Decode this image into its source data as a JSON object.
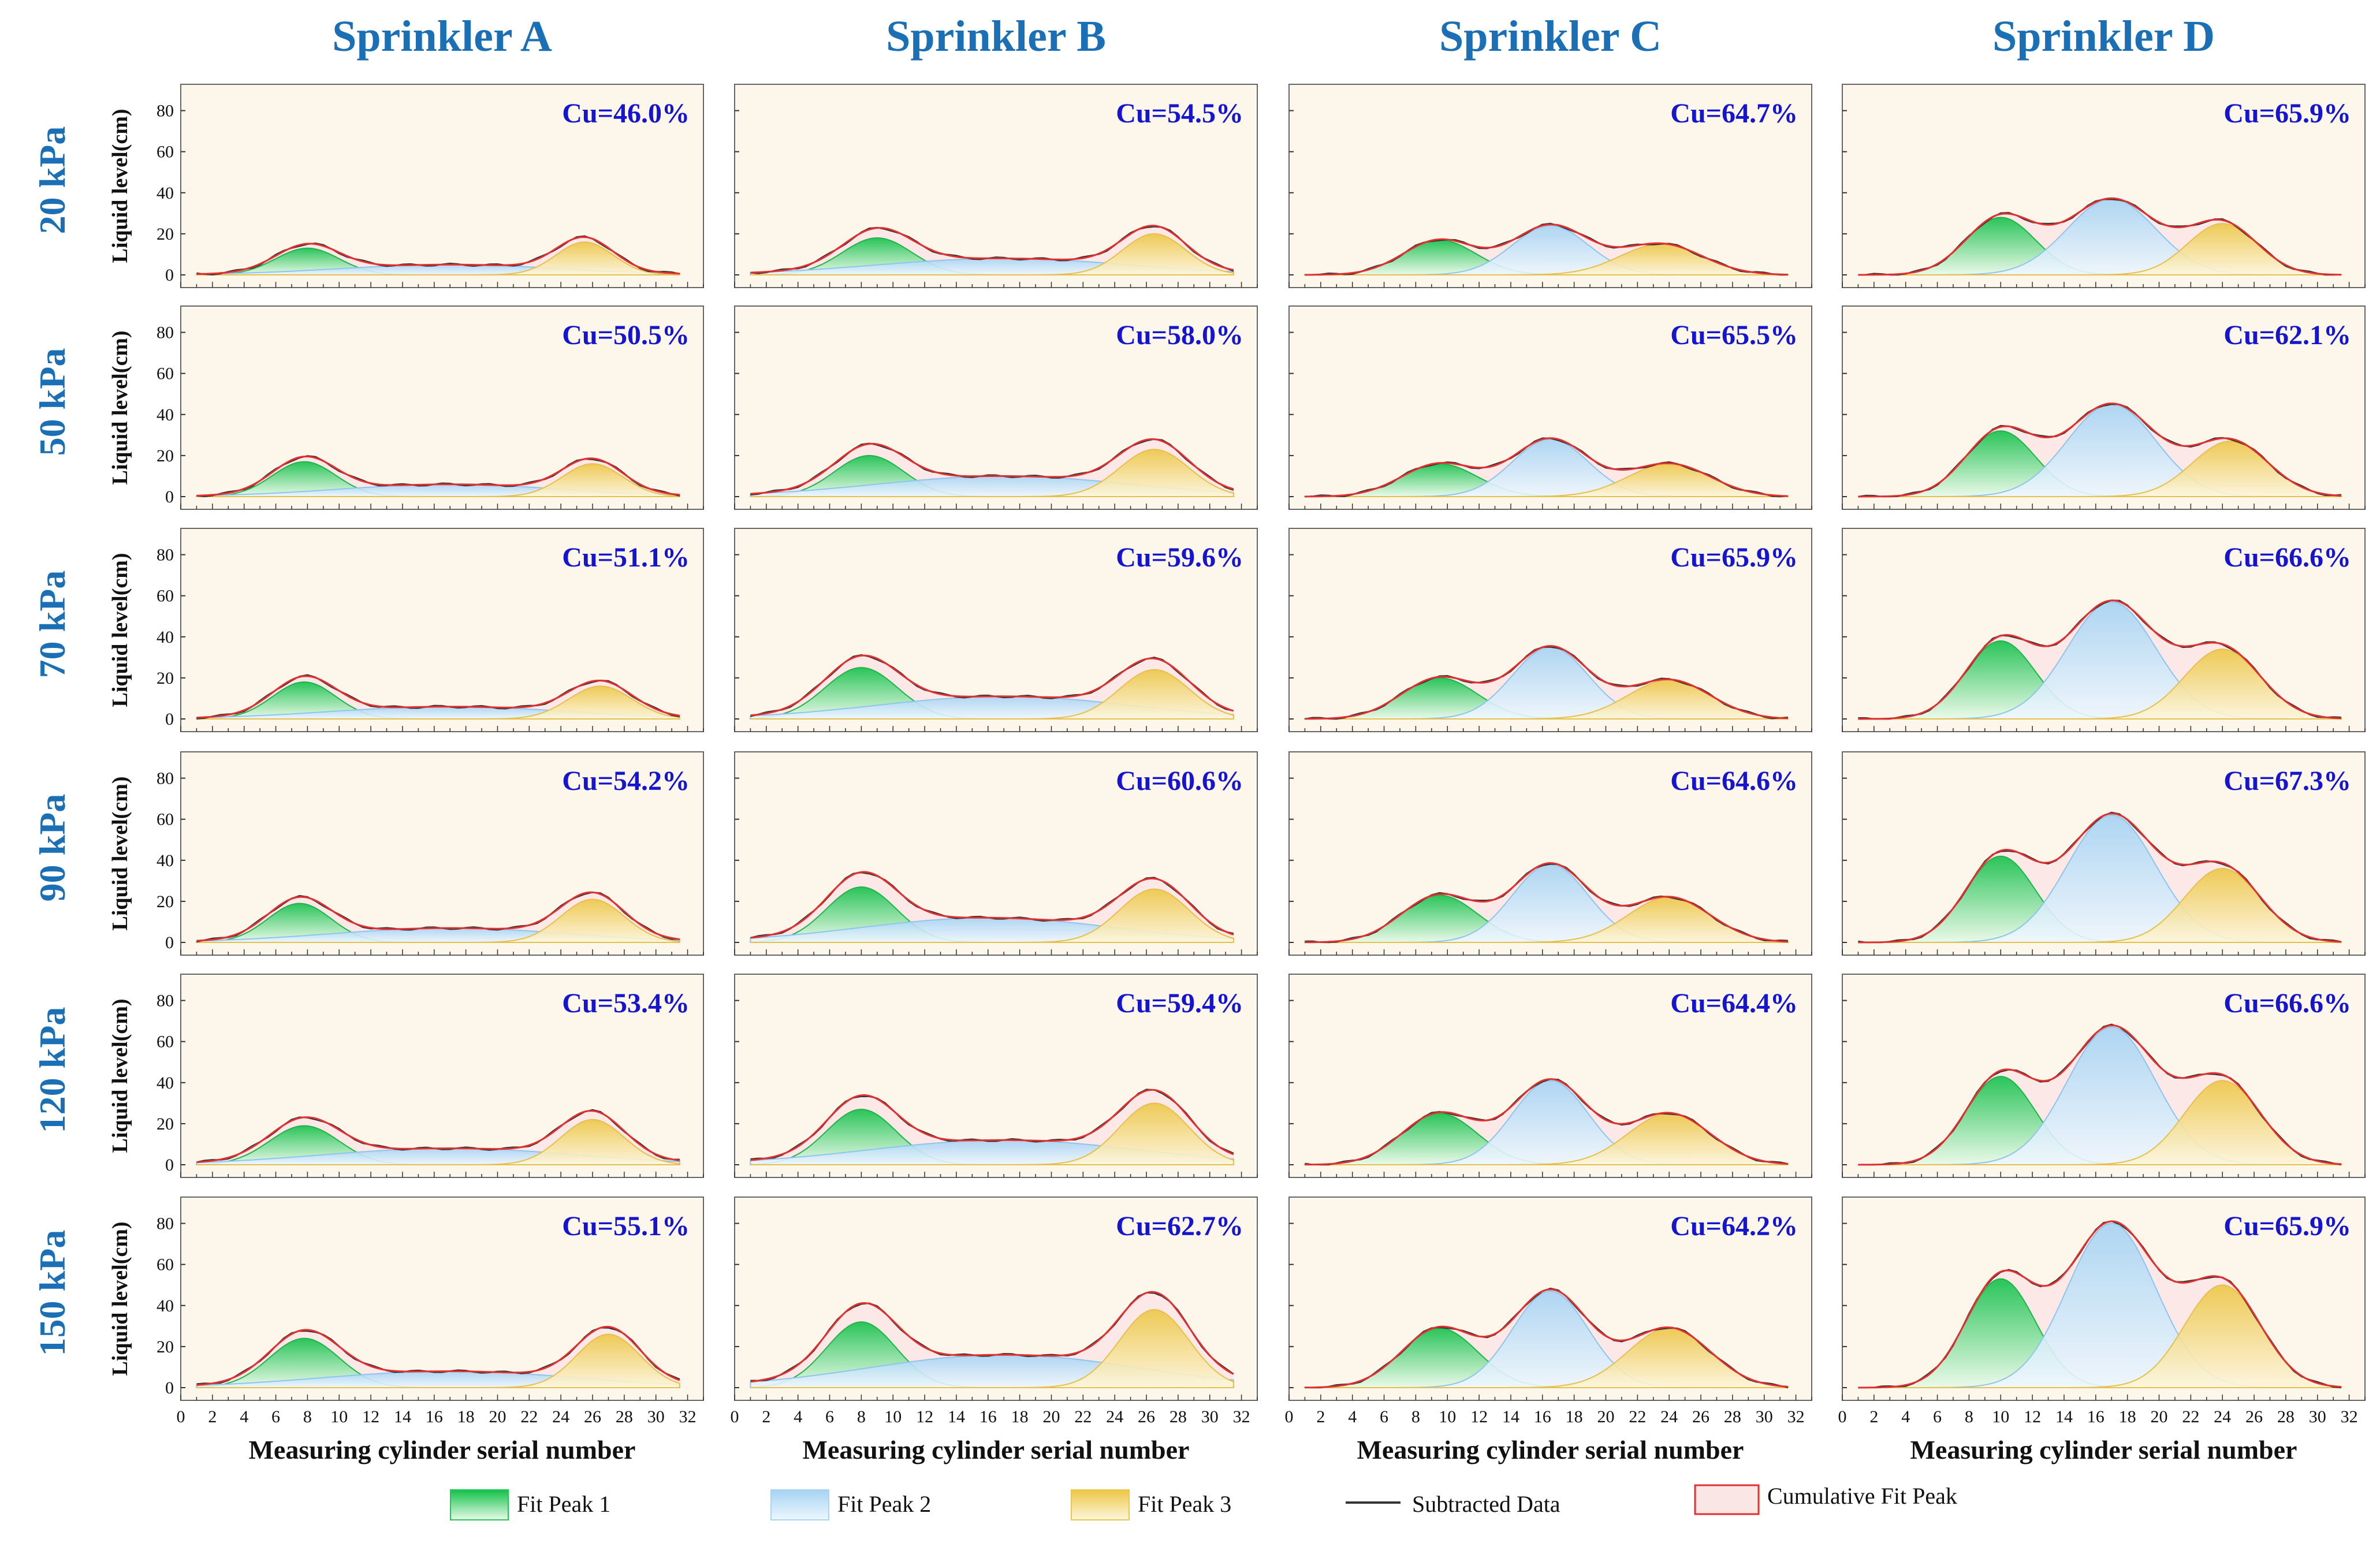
{
  "chart_data": {
    "type": "area",
    "column_titles": [
      "Sprinkler A",
      "Sprinkler B",
      "Sprinkler C",
      "Sprinkler D"
    ],
    "row_labels": [
      "20 kPa",
      "50 kPa",
      "70 kPa",
      "90 kPa",
      "120 kPa",
      "150 kPa"
    ],
    "ylabel": "Liquid level(cm)",
    "xlabel": "Measuring cylinder serial number",
    "xlim": [
      0,
      33
    ],
    "ylim": [
      0,
      90
    ],
    "x_ticks": [
      0,
      2,
      4,
      6,
      8,
      10,
      12,
      14,
      16,
      18,
      20,
      22,
      24,
      26,
      28,
      30,
      32
    ],
    "y_ticks": [
      0,
      20,
      40,
      60,
      80
    ],
    "legend": [
      {
        "name": "Fit Peak 1",
        "color": "#22c855"
      },
      {
        "name": "Fit Peak 2",
        "color": "#a9d4f2"
      },
      {
        "name": "Fit Peak 3",
        "color": "#ecc84a"
      },
      {
        "name": "Subtracted Data",
        "color": "#333333"
      },
      {
        "name": "Cumulative Fit Peak",
        "color": "#e23030"
      }
    ],
    "cu_values": [
      [
        "Cu=46.0%",
        "Cu=54.5%",
        "Cu=64.7%",
        "Cu=65.9%"
      ],
      [
        "Cu=50.5%",
        "Cu=58.0%",
        "Cu=65.5%",
        "Cu=62.1%"
      ],
      [
        "Cu=51.1%",
        "Cu=59.6%",
        "Cu=65.9%",
        "Cu=66.6%"
      ],
      [
        "Cu=54.2%",
        "Cu=60.6%",
        "Cu=64.6%",
        "Cu=67.3%"
      ],
      [
        "Cu=53.4%",
        "Cu=59.4%",
        "Cu=64.4%",
        "Cu=66.6%"
      ],
      [
        "Cu=55.1%",
        "Cu=62.7%",
        "Cu=64.2%",
        "Cu=65.9%"
      ]
    ],
    "peaks": [
      [
        [
          [
            8,
            13,
            2.0
          ],
          [
            17,
            5,
            7.0
          ],
          [
            25.5,
            16,
            1.8
          ]
        ],
        [
          [
            9,
            18,
            2.2
          ],
          [
            17,
            8,
            8.0
          ],
          [
            26.5,
            20,
            2.0
          ]
        ],
        [
          [
            9.5,
            17,
            2.3
          ],
          [
            16.5,
            24,
            2.4
          ],
          [
            23.5,
            15,
            2.6
          ]
        ],
        [
          [
            10,
            28,
            2.2
          ],
          [
            17,
            37,
            2.8
          ],
          [
            24,
            25,
            2.2
          ]
        ]
      ],
      [
        [
          [
            7.8,
            17,
            2.0
          ],
          [
            17,
            6,
            7.0
          ],
          [
            26,
            16,
            1.9
          ]
        ],
        [
          [
            8.5,
            20,
            2.2
          ],
          [
            17,
            10,
            8.0
          ],
          [
            26.5,
            23,
            2.2
          ]
        ],
        [
          [
            9.5,
            16,
            2.4
          ],
          [
            16.5,
            28,
            2.4
          ],
          [
            24,
            16,
            2.6
          ]
        ],
        [
          [
            10,
            32,
            2.2
          ],
          [
            17,
            45,
            2.8
          ],
          [
            24.5,
            27,
            2.4
          ]
        ]
      ],
      [
        [
          [
            7.8,
            18,
            2.0
          ],
          [
            17,
            6,
            7.5
          ],
          [
            26.5,
            16,
            2.0
          ]
        ],
        [
          [
            8,
            25,
            2.3
          ],
          [
            17,
            11,
            8.0
          ],
          [
            26.5,
            24,
            2.2
          ]
        ],
        [
          [
            9.5,
            20,
            2.4
          ],
          [
            16.5,
            35,
            2.4
          ],
          [
            24,
            19,
            2.6
          ]
        ],
        [
          [
            10,
            38,
            2.2
          ],
          [
            17,
            57,
            2.8
          ],
          [
            24,
            34,
            2.4
          ]
        ]
      ],
      [
        [
          [
            7.5,
            19,
            2.0
          ],
          [
            17,
            7,
            7.5
          ],
          [
            26,
            21,
            2.0
          ]
        ],
        [
          [
            8,
            27,
            2.2
          ],
          [
            16,
            12,
            8.0
          ],
          [
            26.5,
            26,
            2.2
          ]
        ],
        [
          [
            9.5,
            23,
            2.4
          ],
          [
            16.5,
            38,
            2.4
          ],
          [
            24,
            22,
            2.6
          ]
        ],
        [
          [
            10,
            42,
            2.2
          ],
          [
            17,
            62,
            2.8
          ],
          [
            24,
            36,
            2.4
          ]
        ]
      ],
      [
        [
          [
            7.8,
            19,
            2.2
          ],
          [
            17,
            8,
            8.0
          ],
          [
            26,
            22,
            2.0
          ]
        ],
        [
          [
            8,
            27,
            2.2
          ],
          [
            17,
            12,
            8.5
          ],
          [
            26.5,
            30,
            2.2
          ]
        ],
        [
          [
            9.5,
            25,
            2.4
          ],
          [
            16.5,
            41,
            2.4
          ],
          [
            24,
            25,
            2.6
          ]
        ],
        [
          [
            10,
            43,
            2.2
          ],
          [
            17,
            67,
            2.8
          ],
          [
            24,
            41,
            2.4
          ]
        ]
      ],
      [
        [
          [
            7.8,
            24,
            2.2
          ],
          [
            17,
            8,
            8.0
          ],
          [
            27,
            26,
            2.0
          ]
        ],
        [
          [
            8,
            32,
            2.2
          ],
          [
            17,
            16,
            8.5
          ],
          [
            26.5,
            38,
            2.2
          ]
        ],
        [
          [
            9.5,
            29,
            2.4
          ],
          [
            16.5,
            47,
            2.4
          ],
          [
            24,
            29,
            2.6
          ]
        ],
        [
          [
            10,
            53,
            2.2
          ],
          [
            17,
            80,
            2.8
          ],
          [
            24,
            50,
            2.4
          ]
        ]
      ]
    ]
  }
}
